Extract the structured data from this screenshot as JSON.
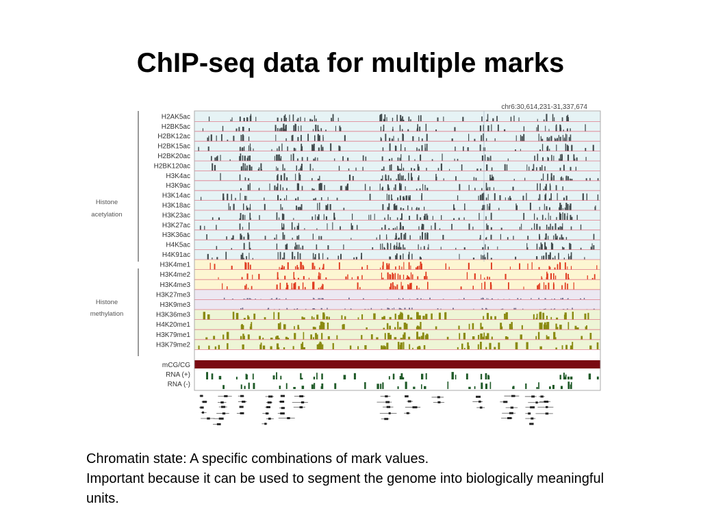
{
  "slide": {
    "title": "ChIP-seq data for multiple marks"
  },
  "figure": {
    "coordinate": "chr6:30,614,231-31,337,674",
    "groups": {
      "acetylation_line1": "Histone",
      "acetylation_line2": "acetylation",
      "methylation_line1": "Histone",
      "methylation_line2": "methylation"
    },
    "tracks": [
      {
        "label": "H2AK5ac",
        "group": "acetylation",
        "color": "#404a4c"
      },
      {
        "label": "H2BK5ac",
        "group": "acetylation",
        "color": "#404a4c"
      },
      {
        "label": "H2BK12ac",
        "group": "acetylation",
        "color": "#404a4c"
      },
      {
        "label": "H2BK15ac",
        "group": "acetylation",
        "color": "#404a4c"
      },
      {
        "label": "H2BK20ac",
        "group": "acetylation",
        "color": "#404a4c"
      },
      {
        "label": "H2BK120ac",
        "group": "acetylation",
        "color": "#404a4c"
      },
      {
        "label": "H3K4ac",
        "group": "acetylation",
        "color": "#404a4c"
      },
      {
        "label": "H3K9ac",
        "group": "acetylation",
        "color": "#404a4c"
      },
      {
        "label": "H3K14ac",
        "group": "acetylation",
        "color": "#404a4c"
      },
      {
        "label": "H3K18ac",
        "group": "acetylation",
        "color": "#404a4c"
      },
      {
        "label": "H3K23ac",
        "group": "acetylation",
        "color": "#404a4c"
      },
      {
        "label": "H3K27ac",
        "group": "acetylation",
        "color": "#404a4c"
      },
      {
        "label": "H3K36ac",
        "group": "acetylation",
        "color": "#404a4c"
      },
      {
        "label": "H4K5ac",
        "group": "acetylation",
        "color": "#404a4c"
      },
      {
        "label": "H4K91ac",
        "group": "acetylation",
        "color": "#404a4c"
      },
      {
        "label": "H3K4me1",
        "group": "methylation-active",
        "color": "#e03a1e"
      },
      {
        "label": "H3K4me2",
        "group": "methylation-active",
        "color": "#e03a1e"
      },
      {
        "label": "H3K4me3",
        "group": "methylation-active",
        "color": "#e03a1e"
      },
      {
        "label": "H3K27me3",
        "group": "methylation-repressive",
        "color": "#6a6a8a"
      },
      {
        "label": "H3K9me3",
        "group": "methylation-repressive",
        "color": "#6a6a8a"
      },
      {
        "label": "H3K36me3",
        "group": "methylation-transcribed",
        "color": "#8a8a10"
      },
      {
        "label": "H4K20me1",
        "group": "methylation-transcribed",
        "color": "#8a8a10"
      },
      {
        "label": "H3K79me1",
        "group": "methylation-transcribed",
        "color": "#8a8a10"
      },
      {
        "label": "H3K79me2",
        "group": "methylation-transcribed",
        "color": "#8a8a10"
      },
      {
        "label": "mCG/CG",
        "group": "other",
        "color": "#7a0a12"
      },
      {
        "label": "RNA (+)",
        "group": "other",
        "color": "#1f5a28"
      },
      {
        "label": "RNA (-)",
        "group": "other",
        "color": "#1f5a28"
      }
    ],
    "colors": {
      "acetylation_bg": "#e6f3f5",
      "active_bg": "#fdf6d2",
      "repressive_bg": "#ece8f2",
      "transcribed_bg": "#eef5d6",
      "separator": "#e07a8a"
    }
  },
  "body": {
    "line1": "Chromatin state: A specific combinations of mark values.",
    "line2": "Important because it can be used to segment the genome into biologically meaningful units."
  }
}
